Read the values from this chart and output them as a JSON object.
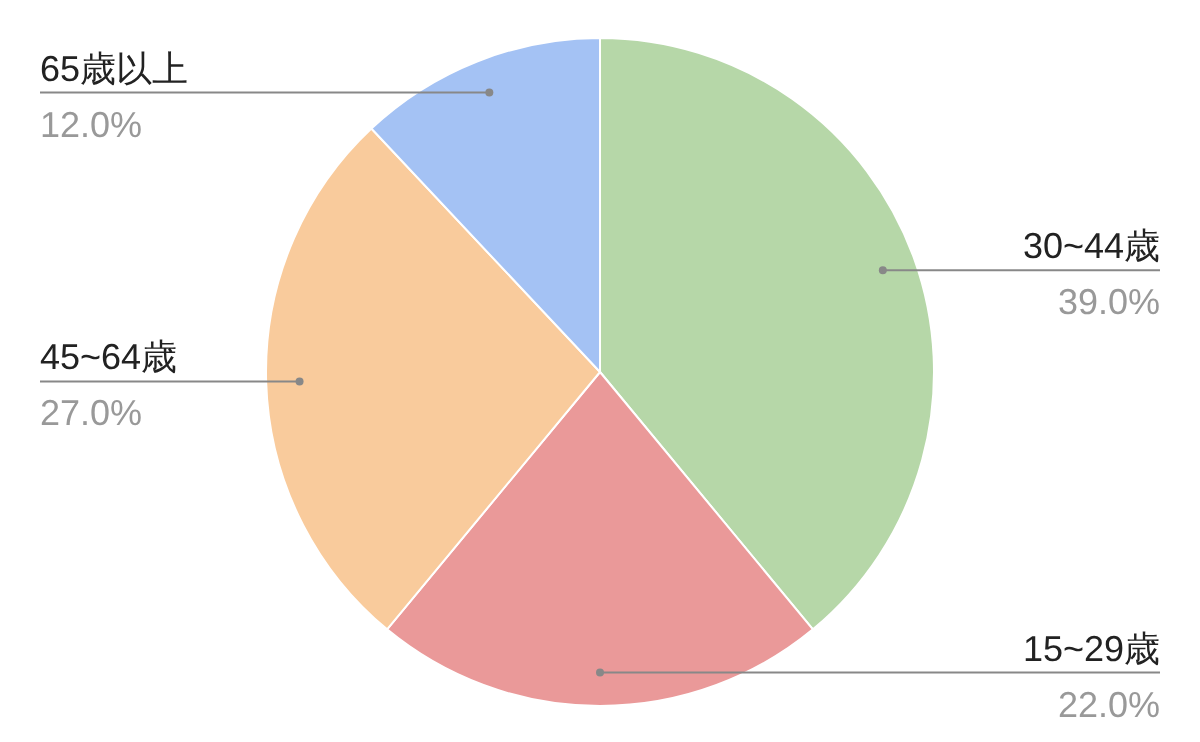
{
  "chart_data": {
    "type": "pie",
    "categories": [
      "30~44歳",
      "15~29歳",
      "45~64歳",
      "65歳以上"
    ],
    "values": [
      39,
      22,
      27,
      12
    ],
    "colors": [
      "#b6d7a8",
      "#ea9999",
      "#f9cb9c",
      "#a4c2f4"
    ],
    "value_labels": [
      "39.0%",
      "22.0%",
      "27.0%",
      "12.0%"
    ]
  }
}
